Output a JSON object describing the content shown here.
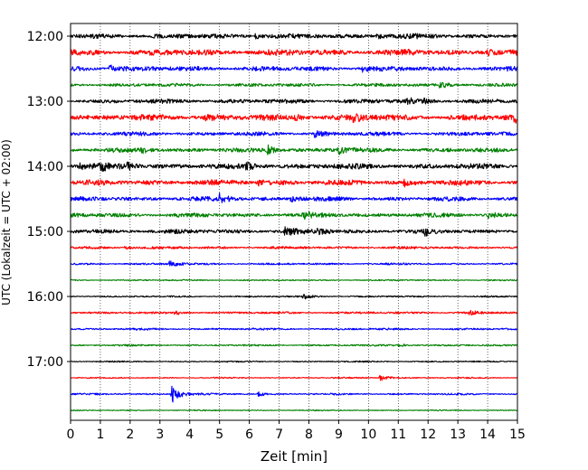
{
  "chart_data": {
    "type": "line",
    "title": "",
    "xlabel": "Zeit  [min]",
    "ylabel": "UTC (Lokalzeit = UTC + 02:00)",
    "xlim": [
      0,
      15
    ],
    "x_ticks": [
      "0",
      "1",
      "2",
      "3",
      "4",
      "5",
      "6",
      "7",
      "8",
      "9",
      "10",
      "11",
      "12",
      "13",
      "14",
      "15"
    ],
    "y_tick_labels": [
      "12:00",
      "13:00",
      "14:00",
      "15:00",
      "16:00",
      "17:00"
    ],
    "grid": "vertical dotted at each minute",
    "colors": [
      "#000000",
      "#ff0000",
      "#0000ff",
      "#008000"
    ],
    "traces": [
      {
        "start": "12:00",
        "color": "#000000",
        "amp": 2.2,
        "events": [
          {
            "x": 6.2,
            "a": 2.5
          },
          {
            "x": 10.3,
            "a": 3
          }
        ]
      },
      {
        "start": "12:15",
        "color": "#ff0000",
        "amp": 2.8,
        "events": [
          {
            "x": 14.0,
            "a": 3
          }
        ]
      },
      {
        "start": "12:30",
        "color": "#0000ff",
        "amp": 2.2,
        "events": [
          {
            "x": 1.3,
            "a": 4.5
          },
          {
            "x": 9.8,
            "a": 3
          }
        ]
      },
      {
        "start": "12:45",
        "color": "#008000",
        "amp": 1.5,
        "events": [
          {
            "x": 12.4,
            "a": 4
          }
        ]
      },
      {
        "start": "13:00",
        "color": "#000000",
        "amp": 2.0,
        "events": [
          {
            "x": 11.3,
            "a": 3
          },
          {
            "x": 11.8,
            "a": 2.5
          }
        ]
      },
      {
        "start": "13:15",
        "color": "#ff0000",
        "amp": 2.8,
        "events": [
          {
            "x": 4.5,
            "a": 3
          },
          {
            "x": 7.5,
            "a": 3
          },
          {
            "x": 9.5,
            "a": 4
          },
          {
            "x": 14.9,
            "a": 4
          }
        ]
      },
      {
        "start": "13:30",
        "color": "#0000ff",
        "amp": 1.8,
        "events": [
          {
            "x": 8.2,
            "a": 3
          }
        ]
      },
      {
        "start": "13:45",
        "color": "#008000",
        "amp": 2.0,
        "events": [
          {
            "x": 2.4,
            "a": 3
          },
          {
            "x": 6.6,
            "a": 5
          },
          {
            "x": 9.0,
            "a": 4
          }
        ]
      },
      {
        "start": "14:00",
        "color": "#000000",
        "amp": 2.5,
        "events": [
          {
            "x": 0.3,
            "a": 3
          },
          {
            "x": 1.0,
            "a": 4
          },
          {
            "x": 1.9,
            "a": 3
          },
          {
            "x": 5.9,
            "a": 3
          }
        ]
      },
      {
        "start": "14:15",
        "color": "#ff0000",
        "amp": 2.5,
        "events": [
          {
            "x": 6.3,
            "a": 3
          },
          {
            "x": 11.2,
            "a": 3
          }
        ]
      },
      {
        "start": "14:30",
        "color": "#0000ff",
        "amp": 2.0,
        "events": [
          {
            "x": 5.0,
            "a": 5
          },
          {
            "x": 7.4,
            "a": 3
          }
        ]
      },
      {
        "start": "14:45",
        "color": "#008000",
        "amp": 2.0,
        "events": [
          {
            "x": 7.8,
            "a": 3
          },
          {
            "x": 14.0,
            "a": 3
          }
        ]
      },
      {
        "start": "15:00",
        "color": "#000000",
        "amp": 2.0,
        "events": [
          {
            "x": 7.2,
            "a": 4
          },
          {
            "x": 8.3,
            "a": 4
          },
          {
            "x": 11.9,
            "a": 3
          }
        ]
      },
      {
        "start": "15:15",
        "color": "#ff0000",
        "amp": 1.2,
        "events": [
          {
            "x": 1.8,
            "a": 2
          }
        ]
      },
      {
        "start": "15:30",
        "color": "#0000ff",
        "amp": 0.9,
        "events": [
          {
            "x": 3.3,
            "a": 3.5
          }
        ]
      },
      {
        "start": "15:45",
        "color": "#008000",
        "amp": 0.6,
        "events": []
      },
      {
        "start": "16:00",
        "color": "#000000",
        "amp": 0.7,
        "events": [
          {
            "x": 7.8,
            "a": 3
          }
        ]
      },
      {
        "start": "16:15",
        "color": "#ff0000",
        "amp": 1.0,
        "events": [
          {
            "x": 3.5,
            "a": 2
          },
          {
            "x": 13.4,
            "a": 2
          }
        ]
      },
      {
        "start": "16:30",
        "color": "#0000ff",
        "amp": 0.9,
        "events": []
      },
      {
        "start": "16:45",
        "color": "#008000",
        "amp": 0.8,
        "events": [
          {
            "x": 11.0,
            "a": 2
          }
        ]
      },
      {
        "start": "17:00",
        "color": "#000000",
        "amp": 0.6,
        "events": []
      },
      {
        "start": "17:15",
        "color": "#ff0000",
        "amp": 0.6,
        "events": [
          {
            "x": 10.4,
            "a": 4
          }
        ]
      },
      {
        "start": "17:30",
        "color": "#0000ff",
        "amp": 0.8,
        "events": [
          {
            "x": 3.4,
            "a": 10
          },
          {
            "x": 6.3,
            "a": 2
          }
        ]
      },
      {
        "start": "17:45",
        "color": "#008000",
        "amp": 0.5,
        "events": []
      }
    ]
  }
}
